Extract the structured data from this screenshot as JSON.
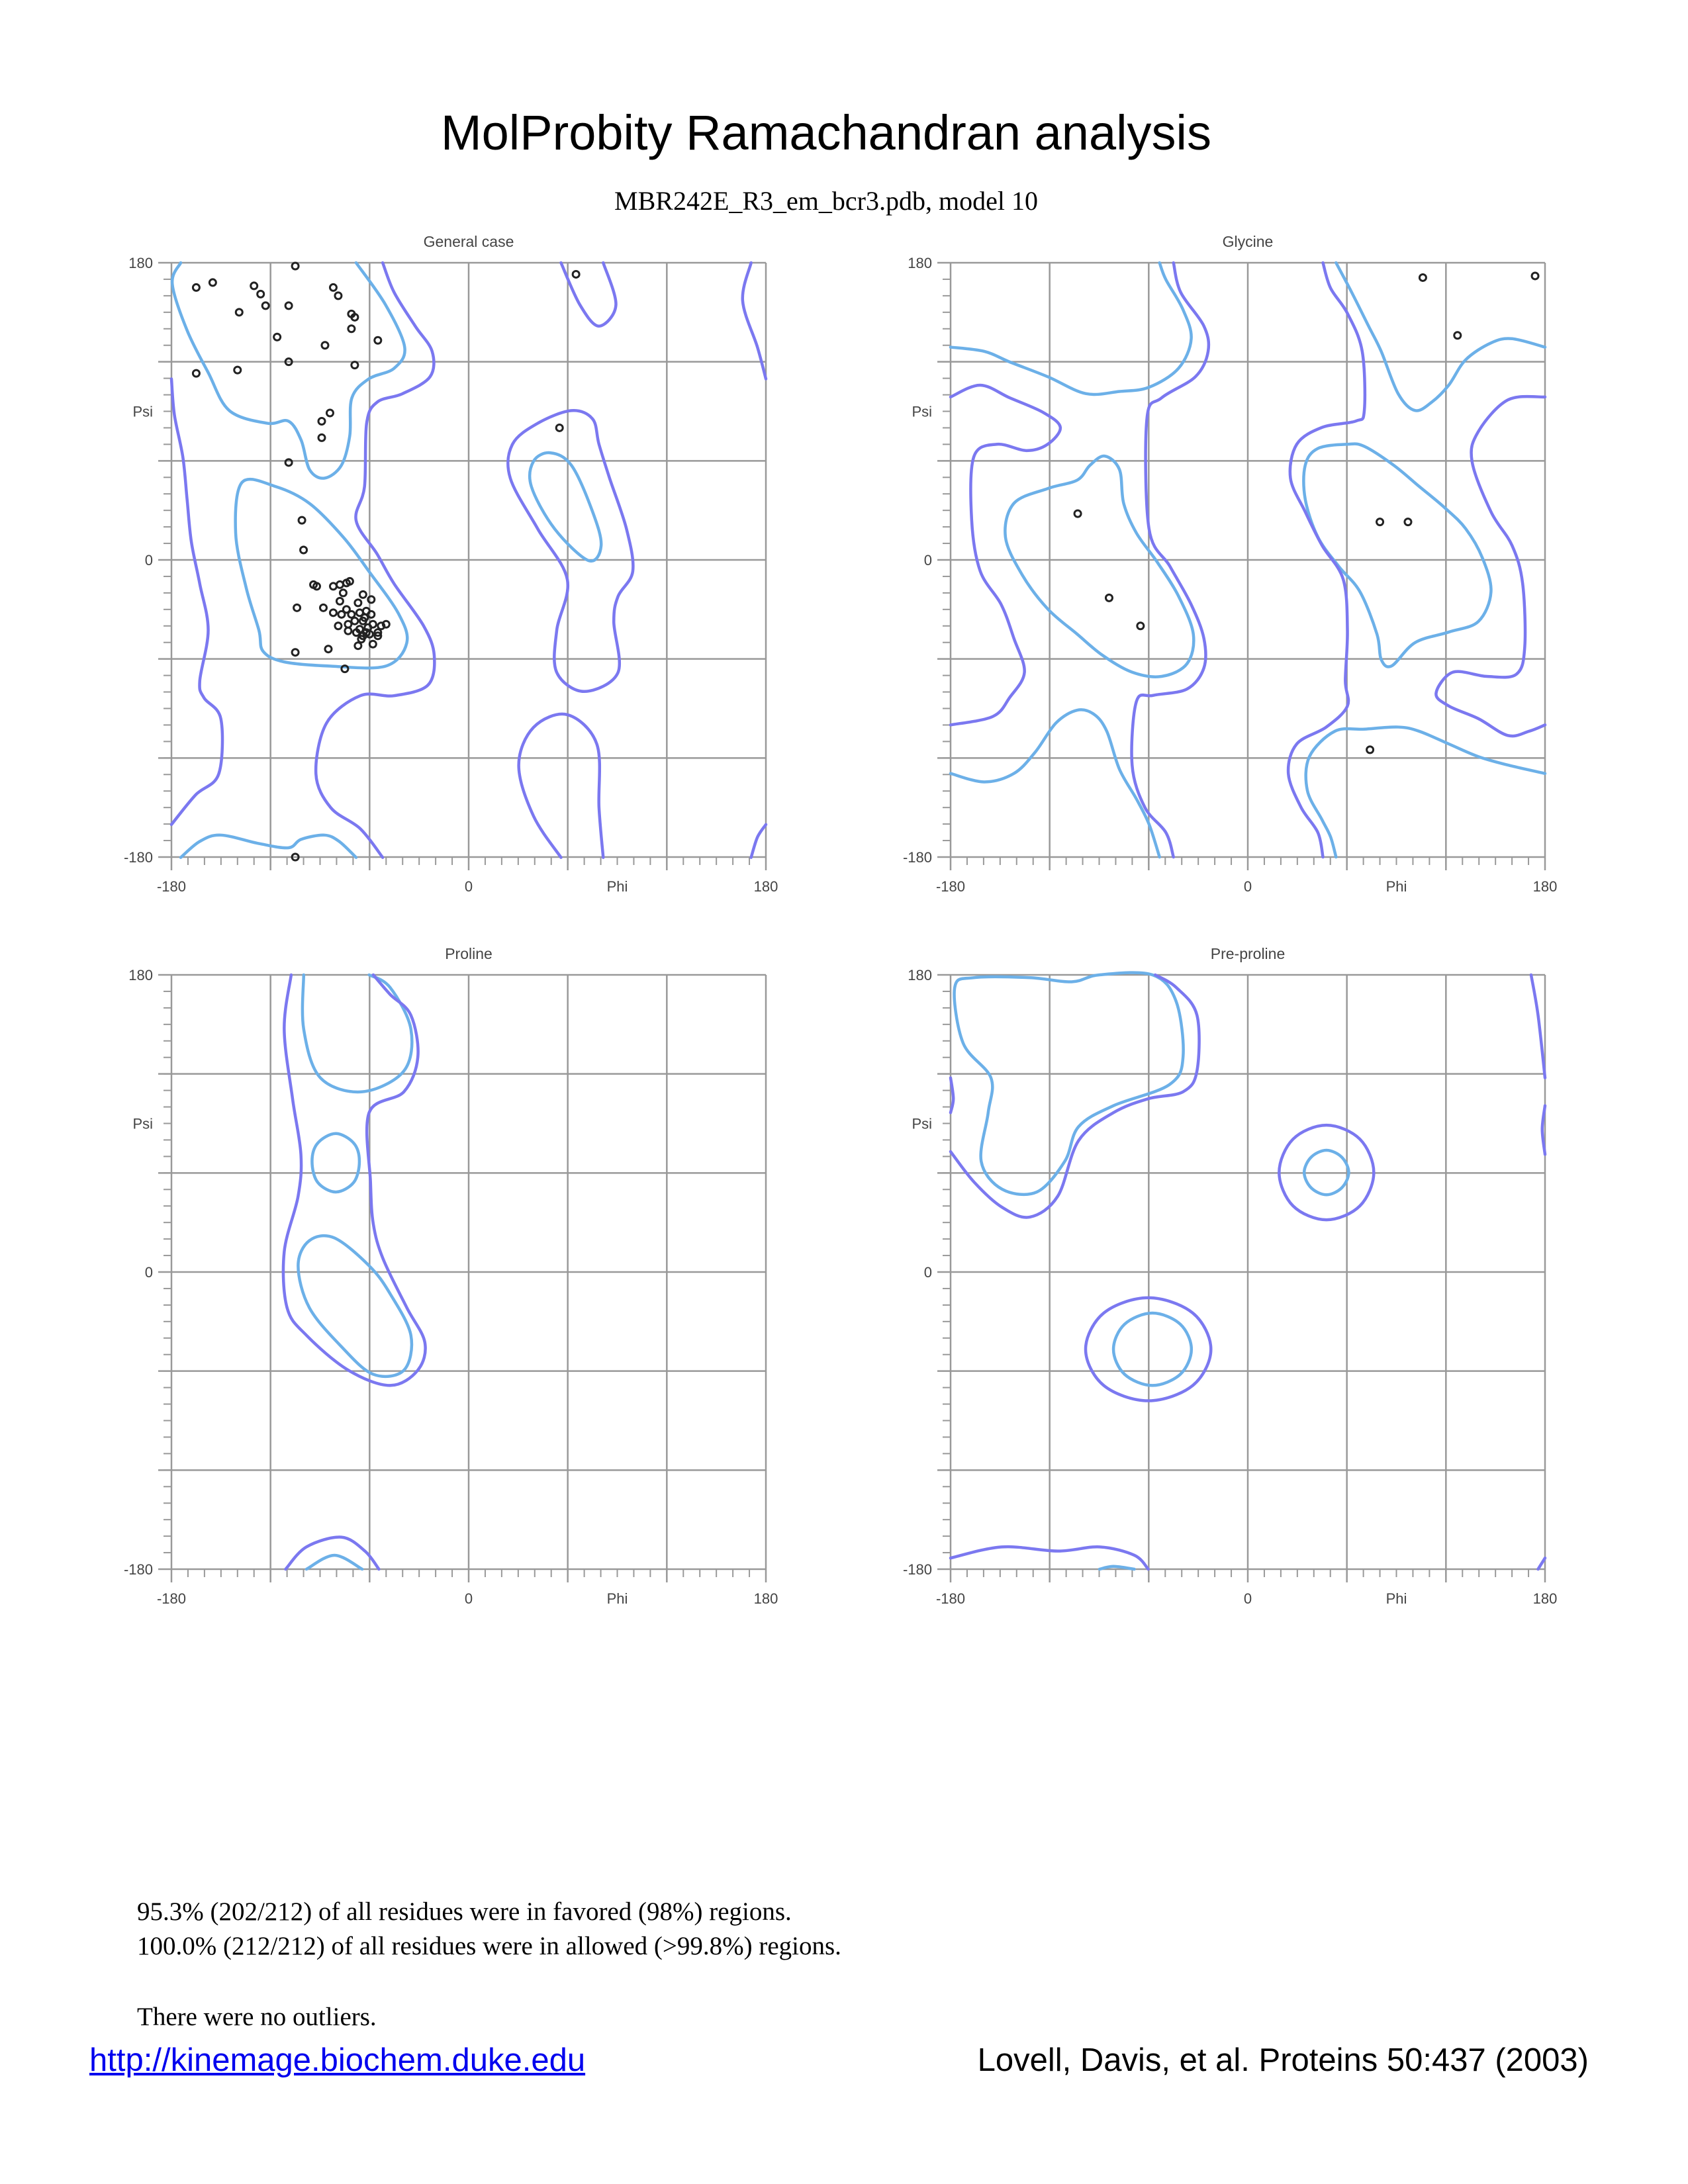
{
  "header": {
    "title": "MolProbity Ramachandran analysis",
    "subtitle": "MBR242E_R3_em_bcr3.pdb, model 10"
  },
  "colors": {
    "favored_contour": "#6cb0e8",
    "allowed_contour": "#7b78f0",
    "grid": "#999999",
    "points": "#222222"
  },
  "chart_data": [
    {
      "type": "scatter",
      "title": "General case",
      "xlabel": "Phi",
      "ylabel": "Psi",
      "xlim": [
        -180,
        180
      ],
      "ylim": [
        -180,
        180
      ],
      "grid": true,
      "xticks": [
        "-180",
        "0",
        "180"
      ],
      "yticks": [
        "180",
        "0",
        "-180"
      ],
      "points": [
        [
          -105,
          178
        ],
        [
          -165,
          165
        ],
        [
          -155,
          168
        ],
        [
          -130,
          166
        ],
        [
          -126,
          161
        ],
        [
          -123,
          154
        ],
        [
          -109,
          154
        ],
        [
          -139,
          150
        ],
        [
          -82,
          165
        ],
        [
          -79,
          160
        ],
        [
          -71,
          149
        ],
        [
          -69,
          147
        ],
        [
          -71,
          140
        ],
        [
          -55,
          133
        ],
        [
          -116,
          135
        ],
        [
          -87,
          130
        ],
        [
          -109,
          120
        ],
        [
          -69,
          118
        ],
        [
          -165,
          113
        ],
        [
          -140,
          115
        ],
        [
          -89,
          84
        ],
        [
          -84,
          89
        ],
        [
          -89,
          74
        ],
        [
          -109,
          59
        ],
        [
          -101,
          24
        ],
        [
          -100,
          6
        ],
        [
          -94,
          -15
        ],
        [
          -92,
          -16
        ],
        [
          -82,
          -16
        ],
        [
          -78,
          -15
        ],
        [
          -74,
          -14
        ],
        [
          -72,
          -13
        ],
        [
          -76,
          -20
        ],
        [
          -64,
          -21
        ],
        [
          -59,
          -24
        ],
        [
          -78,
          -25
        ],
        [
          -67,
          -26
        ],
        [
          -104,
          -29
        ],
        [
          -88,
          -29
        ],
        [
          -82,
          -32
        ],
        [
          -74,
          -30
        ],
        [
          -77,
          -33
        ],
        [
          -71,
          -33
        ],
        [
          -66,
          -32
        ],
        [
          -62,
          -31
        ],
        [
          -59,
          -33
        ],
        [
          -73,
          -39
        ],
        [
          -69,
          -37
        ],
        [
          -64,
          -37
        ],
        [
          -58,
          -39
        ],
        [
          -53,
          -40
        ],
        [
          -50,
          -39
        ],
        [
          -79,
          -40
        ],
        [
          -73,
          -43
        ],
        [
          -66,
          -42
        ],
        [
          -62,
          -44
        ],
        [
          -64,
          -46
        ],
        [
          -60,
          -45
        ],
        [
          -55,
          -44
        ],
        [
          -55,
          -46
        ],
        [
          -67,
          -52
        ],
        [
          -58,
          -51
        ],
        [
          -85,
          -54
        ],
        [
          -105,
          -56
        ],
        [
          -75,
          -66
        ],
        [
          -105,
          -180
        ],
        [
          65,
          173
        ],
        [
          55,
          80
        ],
        [
          -63,
          -35
        ],
        [
          -61,
          -41
        ],
        [
          -68,
          -44
        ],
        [
          -65,
          -48
        ]
      ]
    },
    {
      "type": "scatter",
      "title": "Glycine",
      "xlabel": "Phi",
      "ylabel": "Psi",
      "xlim": [
        -180,
        180
      ],
      "ylim": [
        -180,
        180
      ],
      "grid": true,
      "xticks": [
        "-180",
        "0",
        "180"
      ],
      "yticks": [
        "180",
        "0",
        "-180"
      ],
      "points": [
        [
          106,
          171
        ],
        [
          174,
          172
        ],
        [
          127,
          136
        ],
        [
          -103,
          28
        ],
        [
          80,
          23
        ],
        [
          97,
          23
        ],
        [
          -84,
          -23
        ],
        [
          -65,
          -40
        ],
        [
          74,
          -115
        ]
      ]
    },
    {
      "type": "scatter",
      "title": "Proline",
      "xlabel": "Phi",
      "ylabel": "Psi",
      "xlim": [
        -180,
        180
      ],
      "ylim": [
        -180,
        180
      ],
      "grid": true,
      "xticks": [
        "-180",
        "0",
        "180"
      ],
      "yticks": [
        "180",
        "0",
        "-180"
      ],
      "points": []
    },
    {
      "type": "scatter",
      "title": "Pre-proline",
      "xlabel": "Phi",
      "ylabel": "Psi",
      "xlim": [
        -180,
        180
      ],
      "ylim": [
        -180,
        180
      ],
      "grid": true,
      "xticks": [
        "-180",
        "0",
        "180"
      ],
      "yticks": [
        "180",
        "0",
        "-180"
      ],
      "points": []
    }
  ],
  "summary": {
    "favored": "95.3% (202/212) of all residues were in favored (98%) regions.",
    "allowed": "100.0% (212/212) of all residues were in allowed (>99.8%) regions.",
    "outliers": "There were no outliers."
  },
  "footer": {
    "link": "http://kinemage.biochem.duke.edu",
    "citation": "Lovell, Davis, et al. Proteins 50:437 (2003)"
  }
}
